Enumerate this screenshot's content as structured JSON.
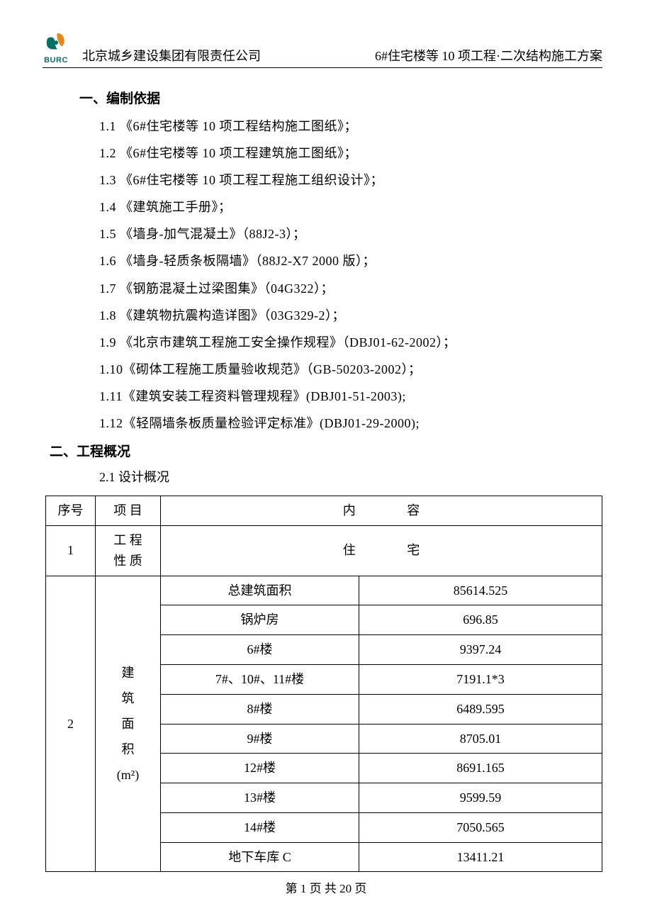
{
  "header": {
    "company": "北京城乡建设集团有限责任公司",
    "doc_title": "6#住宅楼等 10 项工程·二次结构施工方案",
    "logo_label": "BURC",
    "logo_color_green": "#0a6f64",
    "logo_color_orange": "#e08a1e"
  },
  "section1": {
    "heading": "一、编制依据",
    "items": [
      "1.1 《6#住宅楼等 10 项工程结构施工图纸》；",
      "1.2 《6#住宅楼等 10 项工程建筑施工图纸》；",
      "1.3 《6#住宅楼等 10 项工程工程施工组织设计》；",
      "1.4 《建筑施工手册》；",
      "1.5 《墙身-加气混凝土》（88J2-3）；",
      "1.6 《墙身-轻质条板隔墙》（88J2-X7 2000 版）；",
      "1.7 《钢筋混凝土过梁图集》（04G322）；",
      "1.8 《建筑物抗震构造详图》（03G329-2）；",
      "1.9 《北京市建筑工程施工安全操作规程》（DBJ01-62-2002）；",
      "1.10《砌体工程施工质量验收规范》（GB-50203-2002）；",
      "1.11《建筑安装工程资料管理规程》(DBJ01-51-2003);",
      "1.12《轻隔墙条板质量检验评定标准》(DBJ01-29-2000);"
    ]
  },
  "section2": {
    "heading": "二、工程概况",
    "subhead": "2.1 设计概况"
  },
  "table": {
    "head": {
      "c1": "序号",
      "c2": "项 目",
      "c3": "内    容"
    },
    "row1": {
      "seq": "1",
      "proj": "工 程\n性 质",
      "content": "住    宅"
    },
    "row2": {
      "seq": "2",
      "proj": "建\n筑\n面\n积\n(m²)",
      "pairs": [
        {
          "label": "总建筑面积",
          "value": "85614.525"
        },
        {
          "label": "锅炉房",
          "value": "696.85"
        },
        {
          "label": "6#楼",
          "value": "9397.24"
        },
        {
          "label": "7#、10#、11#楼",
          "value": "7191.1*3"
        },
        {
          "label": "8#楼",
          "value": "6489.595"
        },
        {
          "label": "9#楼",
          "value": "8705.01"
        },
        {
          "label": "12#楼",
          "value": "8691.165"
        },
        {
          "label": "13#楼",
          "value": "9599.59"
        },
        {
          "label": "14#楼",
          "value": "7050.565"
        },
        {
          "label": "地下车库 C",
          "value": "13411.21"
        }
      ]
    }
  },
  "footer": "第 1 页 共 20 页"
}
